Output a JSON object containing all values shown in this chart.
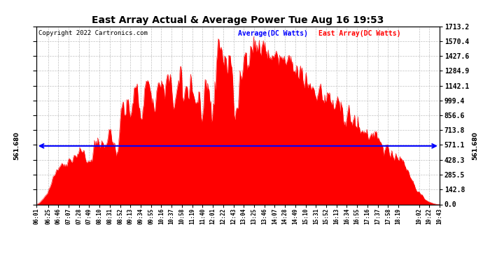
{
  "title": "East Array Actual & Average Power Tue Aug 16 19:53",
  "copyright": "Copyright 2022 Cartronics.com",
  "legend_avg": "Average(DC Watts)",
  "legend_east": "East Array(DC Watts)",
  "average_value": 561.68,
  "ylim": [
    0.0,
    1713.2
  ],
  "yticks": [
    0.0,
    142.8,
    285.5,
    428.3,
    571.1,
    713.8,
    856.6,
    999.4,
    1142.1,
    1284.9,
    1427.6,
    1570.4,
    1713.2
  ],
  "fill_color": "#ff0000",
  "avg_line_color": "#0000ff",
  "bg_color": "#ffffff",
  "grid_color": "#b0b0b0",
  "title_color": "#000000",
  "copyright_color": "#000000",
  "legend_avg_color": "#0000ff",
  "legend_east_color": "#ff0000",
  "x_labels": [
    "06:01",
    "06:25",
    "06:46",
    "07:07",
    "07:28",
    "07:49",
    "08:10",
    "08:31",
    "08:52",
    "09:13",
    "09:34",
    "09:55",
    "10:16",
    "10:37",
    "10:58",
    "11:19",
    "11:40",
    "12:01",
    "12:22",
    "12:43",
    "13:04",
    "13:25",
    "13:46",
    "14:07",
    "14:28",
    "14:49",
    "15:10",
    "15:31",
    "15:52",
    "16:13",
    "16:34",
    "16:55",
    "17:16",
    "17:37",
    "17:58",
    "18:19",
    "19:02",
    "19:22",
    "19:43"
  ],
  "seed": 42
}
